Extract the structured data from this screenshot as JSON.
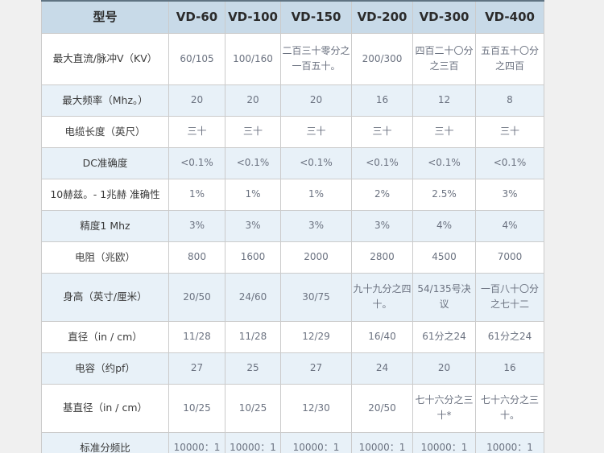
{
  "colors": {
    "page_bg": "#f0f0f0",
    "header_bg": "#c8dae8",
    "stripe_bg": "#e8f1f8",
    "row_bg": "#ffffff",
    "border": "#cbcbcb",
    "top_border": "#5f7382",
    "header_text": "#2b2b2b",
    "label_text": "#3a3a3a",
    "value_text": "#6b7280"
  },
  "chart_data": {
    "type": "table",
    "columns": [
      "型号",
      "VD-60",
      "VD-100",
      "VD-150",
      "VD-200",
      "VD-300",
      "VD-400"
    ],
    "rows": [
      {
        "label": "最大直流/脉冲V（KV）",
        "values": [
          "60/105",
          "100/160",
          "二百三十零分之一百五十。",
          "200/300",
          "四百二十〇分之三百",
          "五百五十〇分之四百"
        ]
      },
      {
        "label": "最大频率（Mhz。）",
        "values": [
          "20",
          "20",
          "20",
          "16",
          "12",
          "8"
        ]
      },
      {
        "label": "电缆长度（英尺）",
        "values": [
          "三十",
          "三十",
          "三十",
          "三十",
          "三十",
          "三十"
        ]
      },
      {
        "label": "DC准确度",
        "values": [
          "<0.1%",
          "<0.1%",
          "<0.1%",
          "<0.1%",
          "<0.1%",
          "<0.1%"
        ]
      },
      {
        "label": "10赫兹。- 1兆赫 准确性",
        "values": [
          "1%",
          "1%",
          "1%",
          "2%",
          "2.5%",
          "3%"
        ]
      },
      {
        "label": "精度1 Mhz",
        "values": [
          "3%",
          "3%",
          "3%",
          "3%",
          "4%",
          "4%"
        ]
      },
      {
        "label": "电阻（兆欧）",
        "values": [
          "800",
          "1600",
          "2000",
          "2800",
          "4500",
          "7000"
        ]
      },
      {
        "label": "身高（英寸/厘米）",
        "values": [
          "20/50",
          "24/60",
          "30/75",
          "九十九分之四十。",
          "54/135号决议",
          "一百八十〇分之七十二"
        ]
      },
      {
        "label": "直径（in / cm）",
        "values": [
          "11/28",
          "11/28",
          "12/29",
          "16/40",
          "61分之24",
          "61分之24"
        ]
      },
      {
        "label": "电容（约pf）",
        "values": [
          "27",
          "25",
          "27",
          "24",
          "20",
          "16"
        ]
      },
      {
        "label": "基直径（in / cm）",
        "values": [
          "10/25",
          "10/25",
          "12/30",
          "20/50",
          "七十六分之三十*",
          "七十六分之三十。"
        ]
      },
      {
        "label": "标准分频比",
        "values": [
          "10000：1",
          "10000：1",
          "10000：1",
          "10000：1",
          "10000：1",
          "10000：1"
        ]
      }
    ]
  }
}
